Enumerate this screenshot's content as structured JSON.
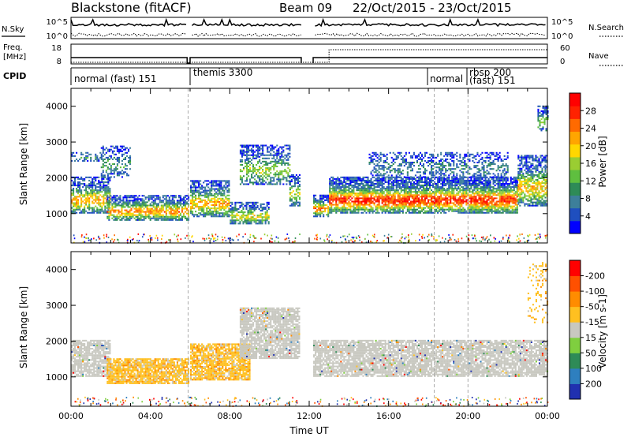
{
  "header": {
    "station": "Blackstone (fitACF)",
    "beam": "Beam 09",
    "dates": "22/Oct/2015 - 23/Oct/2015"
  },
  "left_labels": {
    "nsky": "N.Sky",
    "freq_line1": "Freq.",
    "freq_line2": "[MHz]",
    "cpid": "CPID"
  },
  "right_labels": {
    "nsearch": "N.Search",
    "nave": "Nave"
  },
  "noise_panel": {
    "tick_top": "10^5",
    "tick_bottom": "10^0"
  },
  "freq_panel": {
    "left_ticks": [
      "18",
      "8"
    ],
    "right_ticks": [
      "60",
      "0"
    ]
  },
  "cpid_modes": [
    {
      "label": "normal (fast) 151",
      "start": 0.0
    },
    {
      "label": "themis 3300",
      "start": 5.9
    },
    {
      "label": "normal",
      "start": 18.3
    },
    {
      "label": "rbsp 200",
      "start": 20.0
    },
    {
      "label": "(fast) 151",
      "start": 20.0
    }
  ],
  "chart_data": [
    {
      "type": "heatmap",
      "panel": "power",
      "ylabel": "Slant Range [km]",
      "xlim": [
        0,
        24
      ],
      "ylim": [
        180,
        4500
      ],
      "yticks": [
        "1000",
        "2000",
        "3000",
        "4000"
      ],
      "colorbar": {
        "label": "Power [dB]",
        "ticks": [
          "4",
          "8",
          "12",
          "16",
          "20",
          "24",
          "28"
        ],
        "colors": [
          "#0000ff",
          "#1f4fbf",
          "#3d7f9a",
          "#2e8b57",
          "#5fbf3f",
          "#9acd32",
          "#ffd700",
          "#ffa500",
          "#ff6a00",
          "#ff2200",
          "#ff0000"
        ]
      },
      "bands": [
        {
          "t0": 0.0,
          "t1": 2.0,
          "r0": 1000,
          "r1": 2000,
          "level": 0.55
        },
        {
          "t0": 0.0,
          "t1": 1.5,
          "r0": 2450,
          "r1": 2700,
          "level": 0.15
        },
        {
          "t0": 1.5,
          "t1": 3.0,
          "r0": 2000,
          "r1": 2900,
          "level": 0.2
        },
        {
          "t0": 1.8,
          "t1": 5.9,
          "r0": 800,
          "r1": 1500,
          "level": 0.6
        },
        {
          "t0": 6.0,
          "t1": 8.0,
          "r0": 900,
          "r1": 1900,
          "level": 0.55
        },
        {
          "t0": 8.0,
          "t1": 10.0,
          "r0": 700,
          "r1": 1300,
          "level": 0.45
        },
        {
          "t0": 8.5,
          "t1": 11.0,
          "r0": 1800,
          "r1": 2900,
          "level": 0.35
        },
        {
          "t0": 11.0,
          "t1": 11.5,
          "r0": 1200,
          "r1": 2100,
          "level": 0.4
        },
        {
          "t0": 12.2,
          "t1": 13.0,
          "r0": 900,
          "r1": 1500,
          "level": 0.6
        },
        {
          "t0": 13.0,
          "t1": 22.5,
          "r0": 1000,
          "r1": 2000,
          "level": 0.75
        },
        {
          "t0": 15.0,
          "t1": 22.0,
          "r0": 2000,
          "r1": 2700,
          "level": 0.12
        },
        {
          "t0": 22.5,
          "t1": 24.0,
          "r0": 1200,
          "r1": 2600,
          "level": 0.5
        },
        {
          "t0": 23.5,
          "t1": 24.0,
          "r0": 3300,
          "r1": 4000,
          "level": 0.3
        }
      ]
    },
    {
      "type": "heatmap",
      "panel": "velocity",
      "ylabel": "Slant Range [km]",
      "xlabel": "Time UT",
      "xlim": [
        0,
        24
      ],
      "ylim": [
        180,
        4500
      ],
      "xticks": [
        "00:00",
        "04:00",
        "08:00",
        "12:00",
        "16:00",
        "20:00",
        "00:00"
      ],
      "yticks": [
        "1000",
        "2000",
        "3000",
        "4000"
      ],
      "colorbar": {
        "label": "Velocity [m s-1]",
        "ticks": [
          "200",
          "100",
          "50",
          "15",
          "-15",
          "-50",
          "-100",
          "-200"
        ],
        "colors": [
          "#2030b0",
          "#2e7fbf",
          "#2e8b57",
          "#7fcf3f",
          "#c8c8c0",
          "#ffc020",
          "#ff8c00",
          "#ff5000",
          "#ff0000"
        ]
      },
      "bands": [
        {
          "t0": 0.0,
          "t1": 2.0,
          "r0": 1000,
          "r1": 2000,
          "kind": "gray"
        },
        {
          "t0": 1.8,
          "t1": 5.9,
          "r0": 800,
          "r1": 1500,
          "kind": "orange"
        },
        {
          "t0": 6.0,
          "t1": 9.0,
          "r0": 900,
          "r1": 1900,
          "kind": "orange"
        },
        {
          "t0": 8.5,
          "t1": 11.5,
          "r0": 1500,
          "r1": 2900,
          "kind": "gray"
        },
        {
          "t0": 12.2,
          "t1": 24.0,
          "r0": 1000,
          "r1": 2000,
          "kind": "gray"
        },
        {
          "t0": 23.0,
          "t1": 24.0,
          "r0": 2500,
          "r1": 4200,
          "kind": "orange-sparse"
        }
      ]
    }
  ]
}
